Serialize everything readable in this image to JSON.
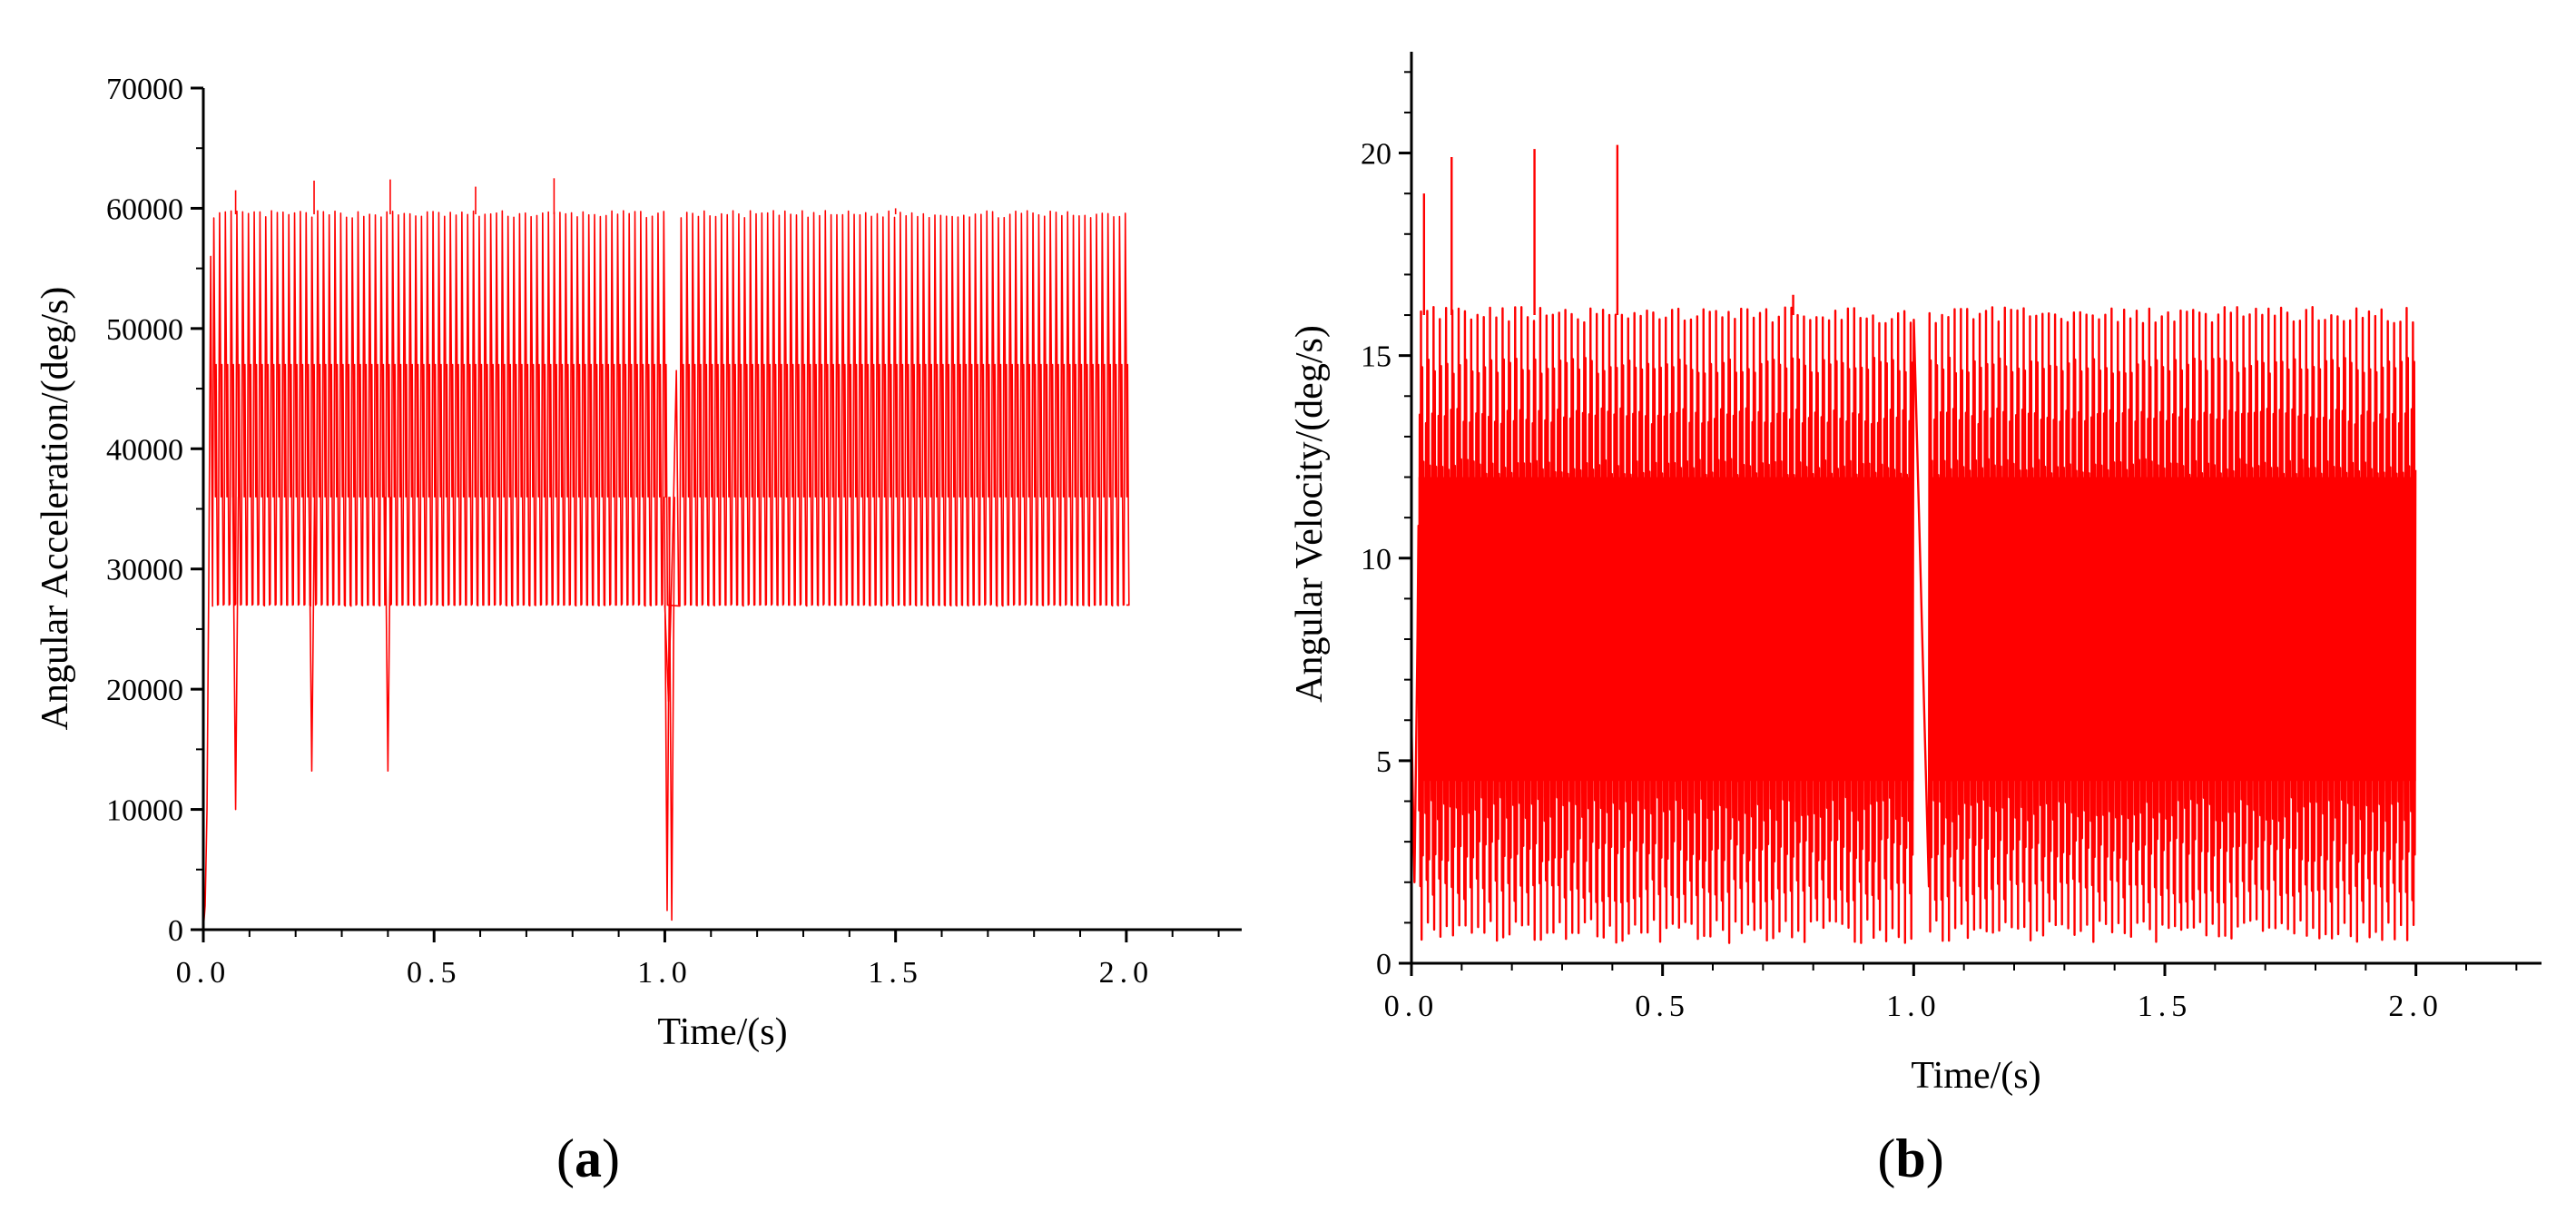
{
  "chart_data": [
    {
      "type": "line",
      "panel_label": "a",
      "xlabel": "Time/(s)",
      "ylabel": "Angular Acceleration/(deg/s)",
      "xlim": [
        0,
        2.25
      ],
      "ylim": [
        0,
        70000
      ],
      "xticks": [
        0,
        0.5,
        1.0,
        1.5,
        2.0
      ],
      "xtick_labels": [
        "0.0",
        "0.5",
        "1.0",
        "1.5",
        "2.0"
      ],
      "yticks": [
        0,
        10000,
        20000,
        30000,
        40000,
        50000,
        60000,
        70000
      ],
      "ytick_labels": [
        "0",
        "10000",
        "20000",
        "30000",
        "40000",
        "50000",
        "60000",
        "70000"
      ],
      "series": [
        {
          "name": "Angular Acceleration",
          "color": "#ff0000",
          "pattern": {
            "t_start": 0.0,
            "t_end": 2.0,
            "period": 0.0125,
            "upper": 59500,
            "mid_high": 48500,
            "mid_low": 36000,
            "lower": 27000,
            "dips": [
              {
                "t": 0.07,
                "value": 10000
              },
              {
                "t": 0.235,
                "value": 13200
              },
              {
                "t": 0.4,
                "value": 13200
              },
              {
                "t": 1.005,
                "value": 1600
              },
              {
                "t": 1.015,
                "value": 800
              }
            ],
            "peaks": [
              {
                "t": 0.07,
                "value": 61500
              },
              {
                "t": 0.24,
                "value": 62300
              },
              {
                "t": 0.405,
                "value": 62400
              },
              {
                "t": 0.59,
                "value": 61800
              },
              {
                "t": 0.76,
                "value": 62500
              },
              {
                "t": 1.5,
                "value": 60000
              }
            ],
            "gap": [
              1.0,
              1.03
            ]
          }
        }
      ]
    },
    {
      "type": "line",
      "panel_label": "b",
      "xlabel": "Time/(s)",
      "ylabel": "Angular Velocity/(deg/s)",
      "xlim": [
        0,
        2.25
      ],
      "ylim": [
        0,
        22.5
      ],
      "xticks": [
        0,
        0.5,
        1.0,
        1.5,
        2.0
      ],
      "xtick_labels": [
        "0.0",
        "0.5",
        "1.0",
        "1.5",
        "2.0"
      ],
      "yticks": [
        0,
        5,
        10,
        15,
        20
      ],
      "ytick_labels": [
        "0",
        "5",
        "10",
        "15",
        "20"
      ],
      "series": [
        {
          "name": "Angular Velocity",
          "color": "#ff0000",
          "pattern": {
            "t_start": 0.0,
            "t_end": 2.0,
            "period": 0.0125,
            "upper": 16,
            "lower": 0.5,
            "peaks": [
              {
                "t": 0.025,
                "value": 19
              },
              {
                "t": 0.08,
                "value": 19.9
              },
              {
                "t": 0.245,
                "value": 20.1
              },
              {
                "t": 0.41,
                "value": 20.2
              },
              {
                "t": 0.76,
                "value": 16.5
              }
            ],
            "gap": [
              1.0,
              1.03
            ]
          }
        }
      ]
    }
  ]
}
